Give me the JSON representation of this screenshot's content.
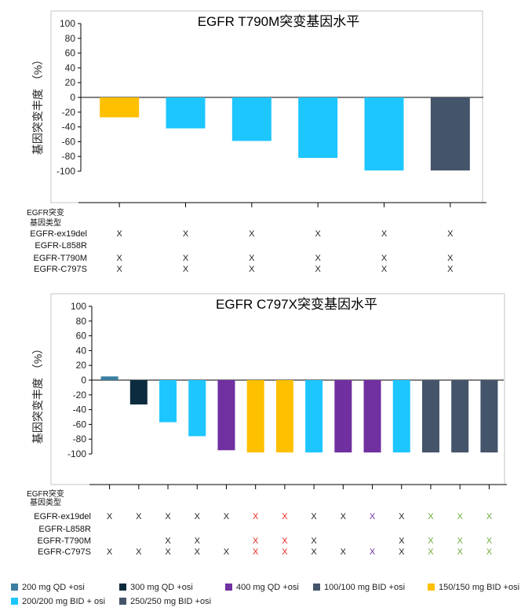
{
  "colors": {
    "teal": "#3a7ea1",
    "navy": "#0d2b3e",
    "purple": "#7030a0",
    "slate": "#44546a",
    "gold": "#ffc000",
    "sky": "#1ec6ff",
    "axis": "#000000",
    "mark_black": "#222222",
    "mark_red": "#e8231f",
    "mark_purple": "#7030a0",
    "mark_green": "#6aaa3a"
  },
  "mutation_header": [
    "EGFR突变",
    "基因类型"
  ],
  "mutation_rows": [
    "EGFR-ex19del",
    "EGFR-L858R",
    "EGFR-T790M",
    "EGFR-C797S"
  ],
  "chart_data": [
    {
      "type": "bar",
      "title": "EGFR T790M突变基因水平",
      "ylabel": "基因突变丰度 （%）",
      "ylim": [
        -100,
        100
      ],
      "yticks": [
        100,
        80,
        60,
        40,
        20,
        0,
        -20,
        -40,
        -60,
        -80,
        -100
      ],
      "values": [
        -27,
        -42,
        -59,
        -82,
        -99,
        -99
      ],
      "bar_colors": [
        "gold",
        "sky",
        "sky",
        "sky",
        "sky",
        "slate"
      ],
      "marks": [
        [
          "X",
          "",
          "X",
          "X"
        ],
        [
          "X",
          "",
          "X",
          "X"
        ],
        [
          "X",
          "",
          "X",
          "X"
        ],
        [
          "X",
          "",
          "X",
          "X"
        ],
        [
          "X",
          "",
          "X",
          "X"
        ],
        [
          "X",
          "",
          "X",
          "X"
        ]
      ],
      "mark_colors": [
        "mark_black",
        "mark_black",
        "mark_black",
        "mark_black",
        "mark_black",
        "mark_black"
      ]
    },
    {
      "type": "bar",
      "title": "EGFR C797X突变基因水平",
      "ylabel": "基因突变丰度 （%）",
      "ylim": [
        -100,
        100
      ],
      "yticks": [
        100,
        80,
        60,
        40,
        20,
        0,
        -20,
        -40,
        -60,
        -80,
        -100
      ],
      "values": [
        5,
        -33,
        -57,
        -76,
        -95,
        -98,
        -98,
        -98,
        -98,
        -98,
        -98,
        -98,
        -98,
        -98
      ],
      "bar_colors": [
        "teal",
        "navy",
        "sky",
        "sky",
        "purple",
        "gold",
        "gold",
        "sky",
        "purple",
        "purple",
        "sky",
        "slate",
        "slate",
        "slate"
      ],
      "marks": [
        [
          "X",
          "",
          "",
          "X"
        ],
        [
          "X",
          "",
          "",
          "X"
        ],
        [
          "X",
          "",
          "X",
          "X"
        ],
        [
          "X",
          "",
          "X",
          "X"
        ],
        [
          "X",
          "",
          "",
          "X"
        ],
        [
          "X",
          "",
          "X",
          "X"
        ],
        [
          "X",
          "",
          "X",
          "X"
        ],
        [
          "X",
          "",
          "X",
          "X"
        ],
        [
          "X",
          "",
          "",
          "X"
        ],
        [
          "X",
          "",
          "",
          "X"
        ],
        [
          "X",
          "",
          "X",
          "X"
        ],
        [
          "X",
          "",
          "X",
          "X"
        ],
        [
          "X",
          "",
          "X",
          "X"
        ],
        [
          "X",
          "",
          "X",
          "X"
        ]
      ],
      "mark_colors": [
        "mark_black",
        "mark_black",
        "mark_black",
        "mark_black",
        "mark_black",
        "mark_red",
        "mark_red",
        "mark_black",
        "mark_black",
        "mark_purple",
        "mark_black",
        "mark_green",
        "mark_green",
        "mark_green"
      ]
    }
  ],
  "legend": [
    {
      "label": "200 mg QD +osi",
      "color": "teal"
    },
    {
      "label": "300 mg QD +osi",
      "color": "navy"
    },
    {
      "label": "400 mg QD +osi",
      "color": "purple"
    },
    {
      "label": "100/100 mg BID +osi",
      "color": "slate"
    },
    {
      "label": "150/150 mg BID +osi",
      "color": "gold"
    },
    {
      "label": "200/200 mg BID + osi",
      "color": "sky"
    },
    {
      "label": "250/250 mg BID +osi",
      "color": "slate"
    }
  ]
}
